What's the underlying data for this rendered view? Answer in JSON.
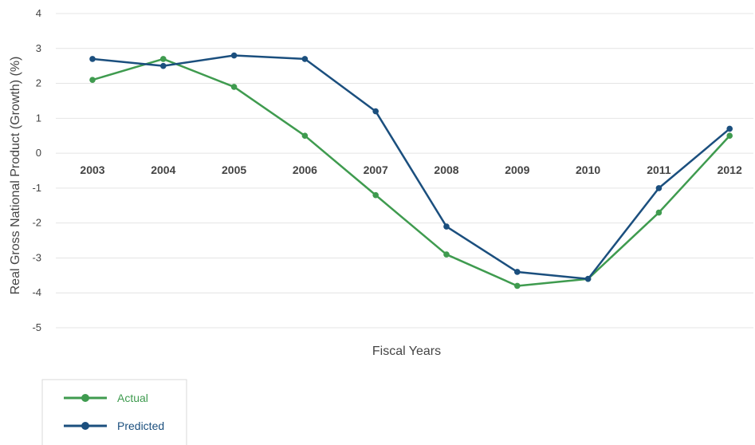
{
  "chart_data": {
    "type": "line",
    "title": "",
    "xlabel": "Fiscal Years",
    "ylabel": "Real Gross National Product (Growth) (%)",
    "categories": [
      "2003",
      "2004",
      "2005",
      "2006",
      "2007",
      "2008",
      "2009",
      "2010",
      "2011",
      "2012"
    ],
    "ylim": [
      -5,
      4
    ],
    "yticks": [
      "4",
      "3",
      "2",
      "1",
      "0",
      "-1",
      "-2",
      "-3",
      "-4",
      "-5"
    ],
    "grid": true,
    "legend_position": "bottom-left",
    "series": [
      {
        "name": "Actual",
        "color": "#3f9b4f",
        "values": [
          2.1,
          2.7,
          1.9,
          0.5,
          -1.2,
          -2.9,
          -3.8,
          -3.6,
          -1.7,
          0.5
        ]
      },
      {
        "name": "Predicted",
        "color": "#1b4f7e",
        "values": [
          2.7,
          2.5,
          2.8,
          2.7,
          1.2,
          -2.1,
          -3.4,
          -3.6,
          -1.0,
          0.7
        ]
      }
    ]
  }
}
